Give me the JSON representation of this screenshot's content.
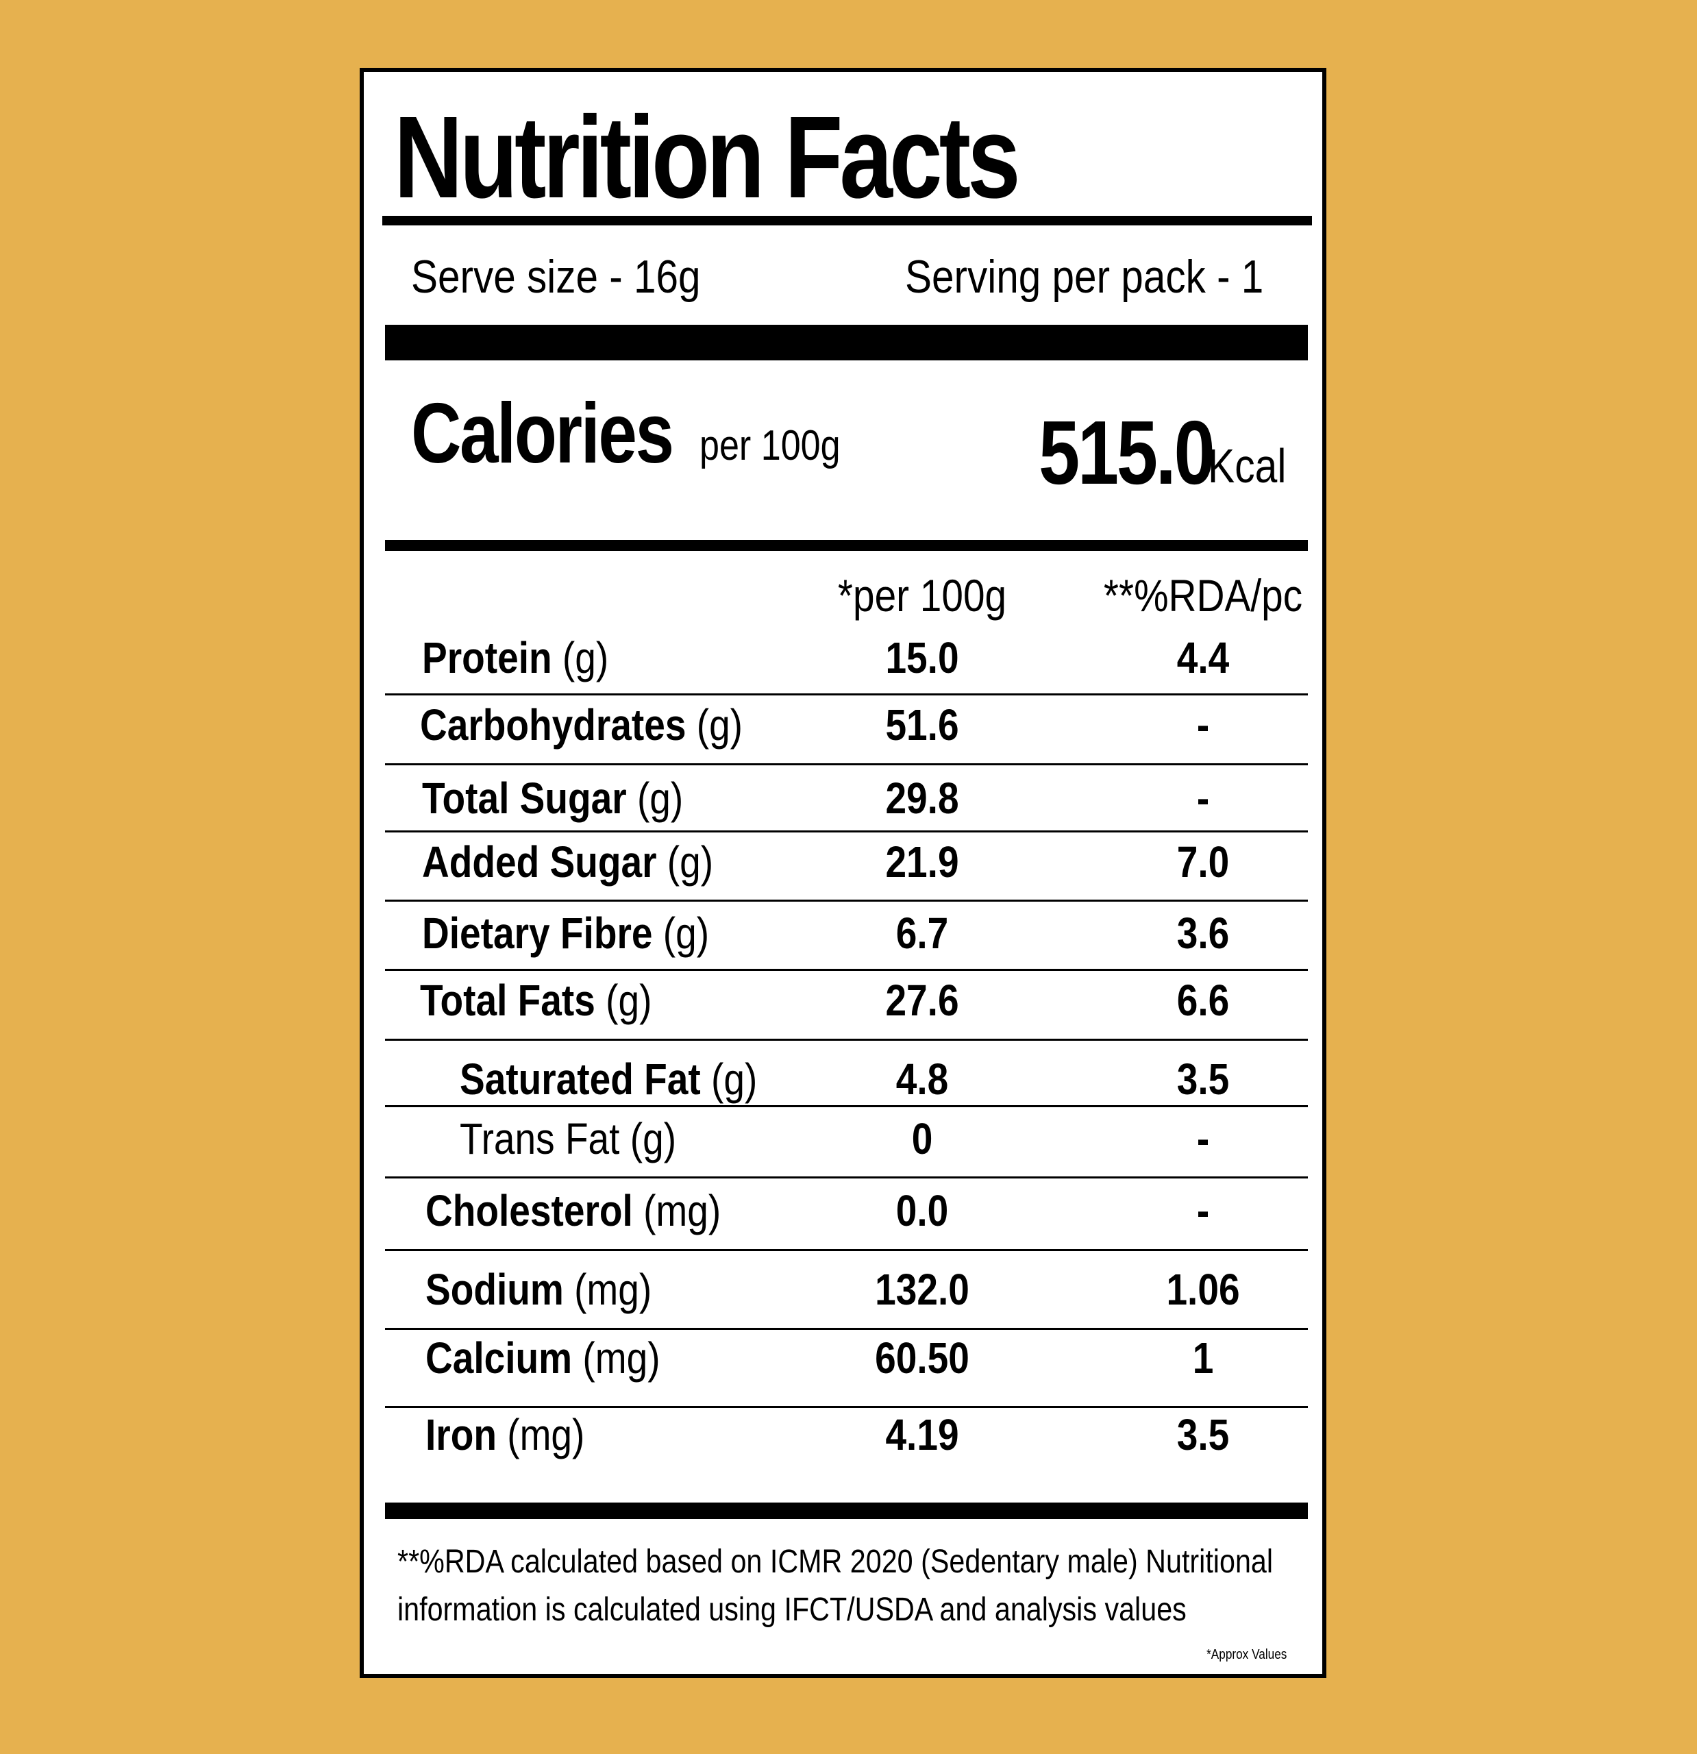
{
  "label": {
    "title": "Nutrition Facts",
    "serve_size": "Serve size - 16g",
    "servings_per_pack": "Serving per pack - 1",
    "calories": {
      "label": "Calories",
      "basis": "per 100g",
      "value": "515.0",
      "unit": "Kcal"
    },
    "columns": {
      "per100": "*per 100g",
      "rda": "**%RDA/pc"
    },
    "nutrients": [
      {
        "name": "Protein",
        "unit": "(g)",
        "per100": "15.0",
        "rda": "4.4"
      },
      {
        "name": "Carbohydrates",
        "unit": "(g)",
        "per100": "51.6",
        "rda": "-"
      },
      {
        "name": "Total Sugar",
        "unit": "(g)",
        "per100": "29.8",
        "rda": "-"
      },
      {
        "name": "Added Sugar",
        "unit": "(g)",
        "per100": "21.9",
        "rda": "7.0"
      },
      {
        "name": "Dietary Fibre",
        "unit": "(g)",
        "per100": "6.7",
        "rda": "3.6"
      },
      {
        "name": "Total Fats",
        "unit": "(g)",
        "per100": "27.6",
        "rda": "6.6"
      },
      {
        "name": "Saturated Fat",
        "unit": "(g)",
        "per100": "4.8",
        "rda": "3.5"
      },
      {
        "name": "Trans Fat",
        "unit": "(g)",
        "per100": "0",
        "rda": "-"
      },
      {
        "name": "Cholesterol",
        "unit": "(mg)",
        "per100": "0.0",
        "rda": "-"
      },
      {
        "name": "Sodium",
        "unit": "(mg)",
        "per100": "132.0",
        "rda": "1.06"
      },
      {
        "name": "Calcium",
        "unit": "(mg)",
        "per100": "60.50",
        "rda": "1"
      },
      {
        "name": "Iron",
        "unit": "(mg)",
        "per100": "4.19",
        "rda": "3.5"
      }
    ],
    "footnote": "**%RDA calculated based on ICMR 2020 (Sedentary male) Nutritional information is calculated using IFCT/USDA and analysis values",
    "approx_note": "*Approx Values"
  },
  "colors": {
    "background": "#E6B14F",
    "panel": "#FFFFFF",
    "ink": "#000000"
  }
}
